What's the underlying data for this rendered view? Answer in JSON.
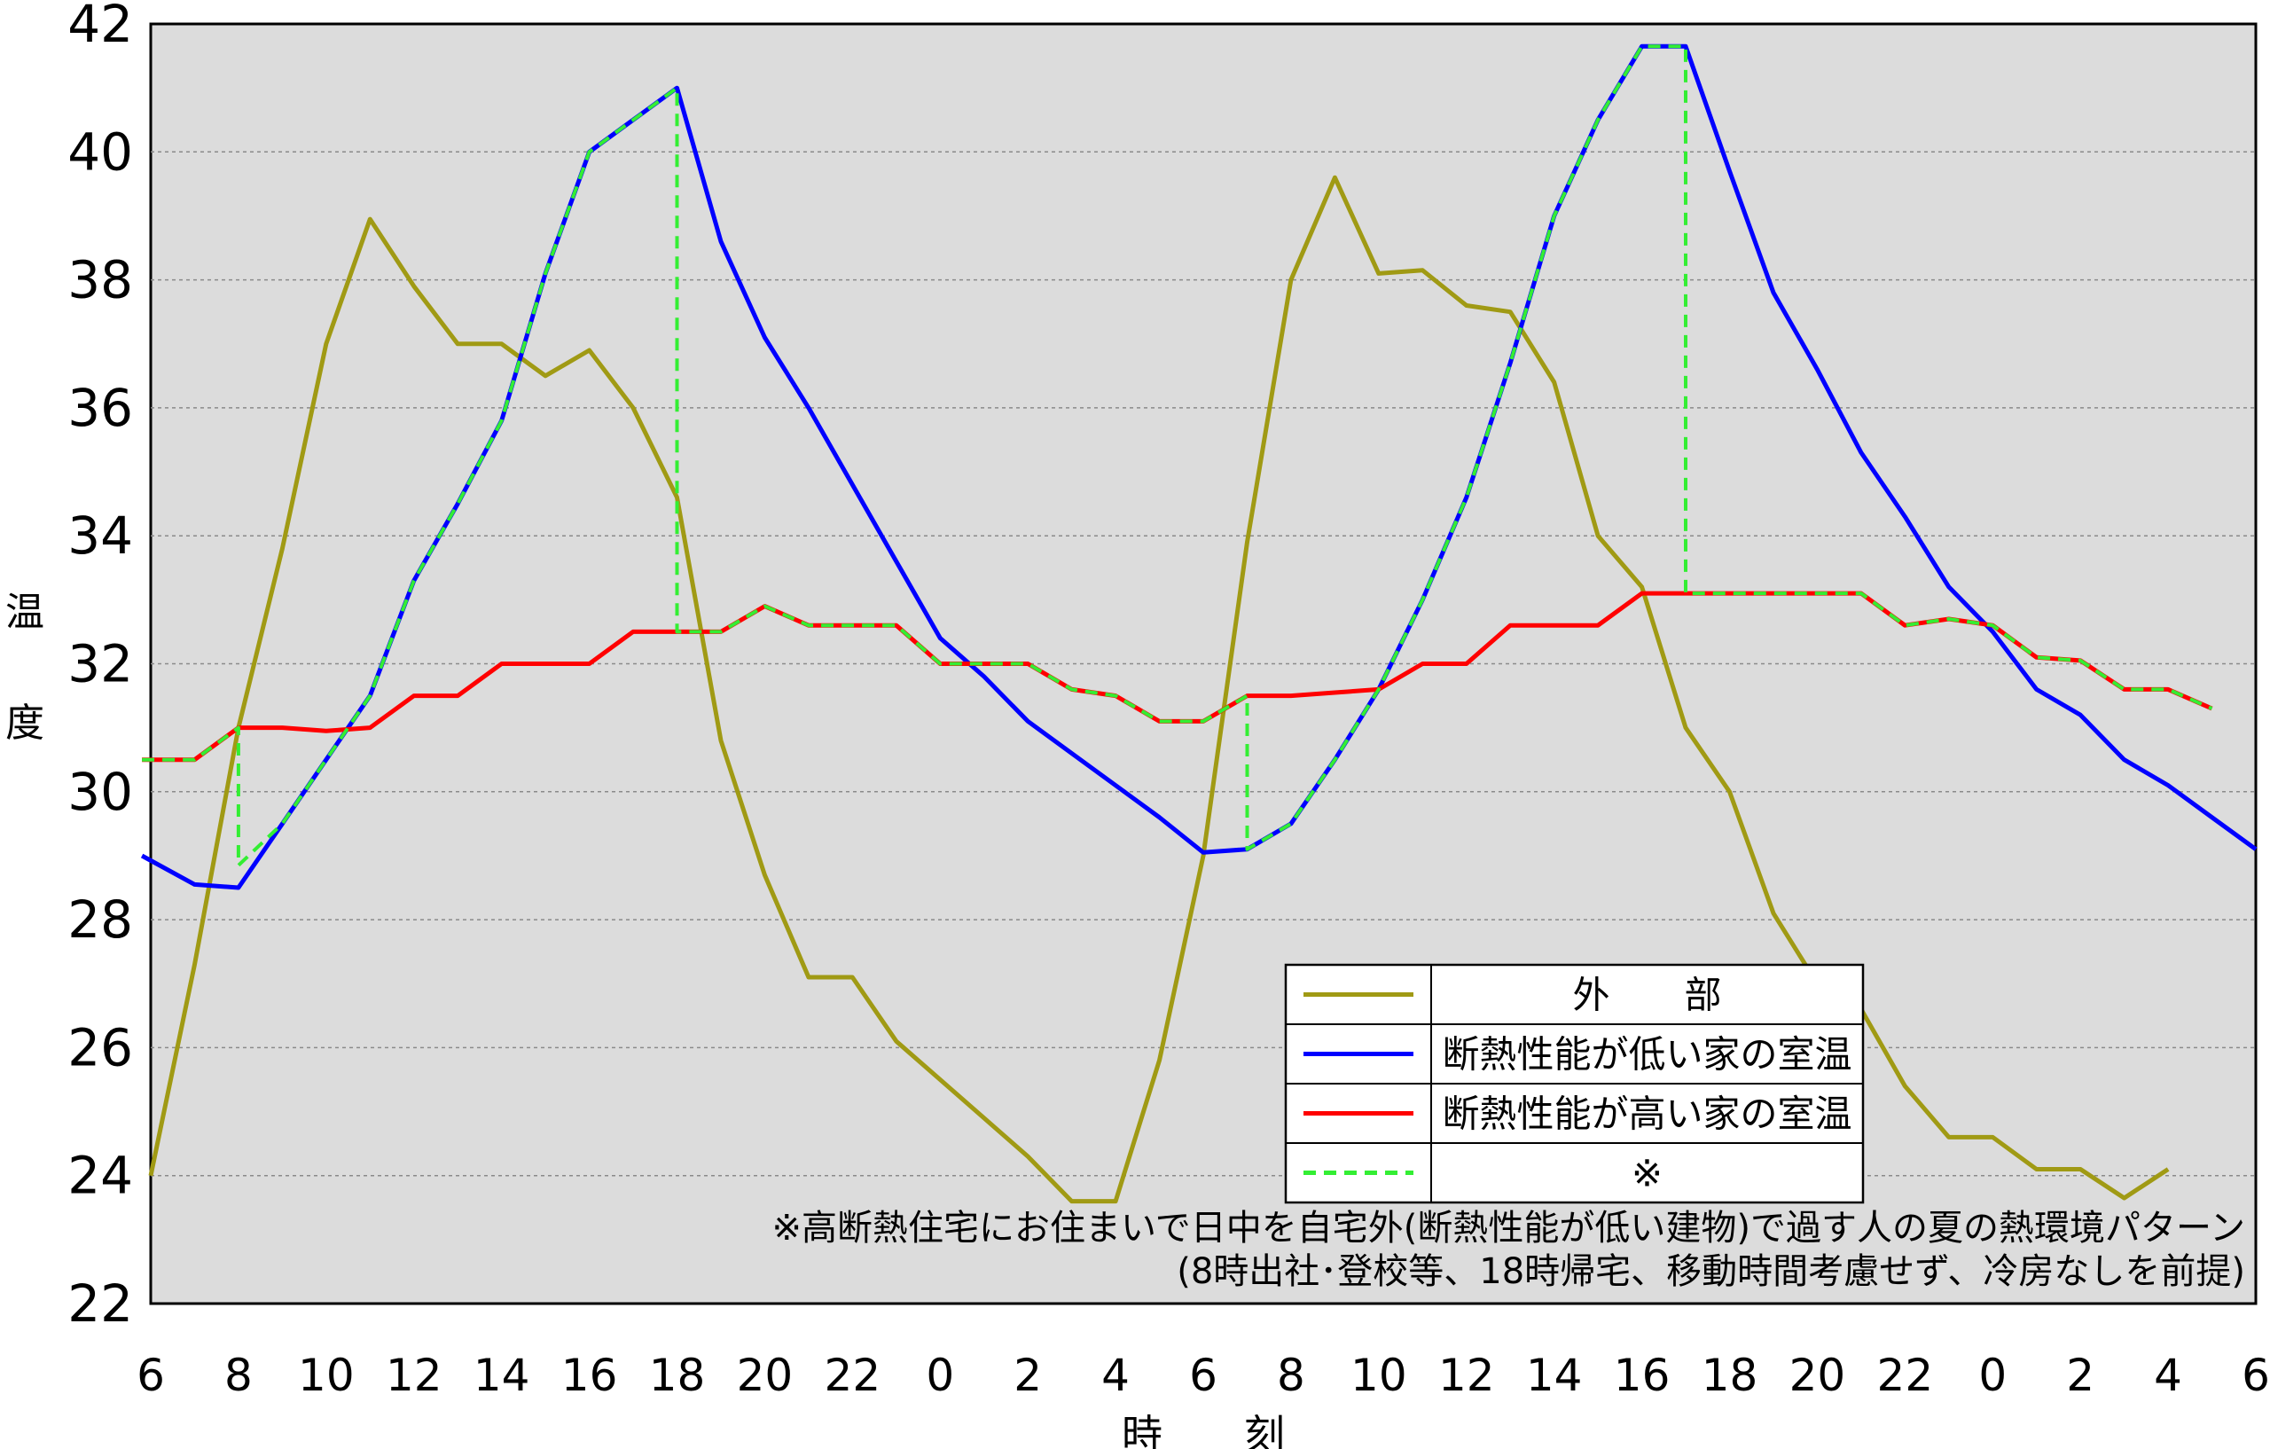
{
  "chart_data": {
    "type": "line",
    "ylabel": "温度",
    "xlabel": "時刻",
    "ylim": [
      22,
      42
    ],
    "yticks": [
      22,
      24,
      26,
      28,
      30,
      32,
      34,
      36,
      38,
      40,
      42
    ],
    "xlim": [
      0,
      48
    ],
    "xtick_labels": [
      "6",
      "8",
      "10",
      "12",
      "14",
      "16",
      "18",
      "20",
      "22",
      "0",
      "2",
      "4",
      "6",
      "8",
      "10",
      "12",
      "14",
      "16",
      "18",
      "20",
      "22",
      "0",
      "2",
      "4",
      "6"
    ],
    "grid": "horizontal dotted",
    "background": "#dcdcdc",
    "legend_position": "lower-right",
    "series": [
      {
        "name": "外　　部",
        "color": "#a09a14",
        "dash": "solid",
        "points": [
          [
            0,
            24.0
          ],
          [
            1,
            27.3
          ],
          [
            2,
            31.0
          ],
          [
            3,
            33.8
          ],
          [
            4,
            37.0
          ],
          [
            5,
            38.95
          ],
          [
            6,
            37.9
          ],
          [
            7,
            37.0
          ],
          [
            8,
            37.0
          ],
          [
            9,
            36.5
          ],
          [
            10,
            36.9
          ],
          [
            11,
            36.0
          ],
          [
            12,
            34.6
          ],
          [
            13,
            30.8
          ],
          [
            14,
            28.7
          ],
          [
            15,
            27.1
          ],
          [
            16,
            27.1
          ],
          [
            17,
            26.1
          ],
          [
            18,
            25.5
          ],
          [
            19,
            24.9
          ],
          [
            20,
            24.3
          ],
          [
            21,
            23.6
          ],
          [
            22,
            23.6
          ],
          [
            23,
            25.8
          ],
          [
            24,
            29.0
          ],
          [
            25,
            33.9
          ],
          [
            26,
            38.0
          ],
          [
            27,
            39.6
          ],
          [
            28,
            38.1
          ],
          [
            29,
            38.15
          ],
          [
            30,
            37.6
          ],
          [
            31,
            37.5
          ],
          [
            32,
            36.4
          ],
          [
            33,
            34.0
          ],
          [
            34,
            33.2
          ],
          [
            35,
            31.0
          ],
          [
            36,
            30.0
          ],
          [
            37,
            28.1
          ],
          [
            38,
            27.0
          ],
          [
            39,
            26.6
          ],
          [
            40,
            25.4
          ],
          [
            41,
            24.6
          ],
          [
            42,
            24.6
          ],
          [
            43,
            24.1
          ],
          [
            44,
            24.1
          ],
          [
            45,
            23.65
          ],
          [
            46,
            24.1
          ]
        ]
      },
      {
        "name": "断熱性能が低い家の室温",
        "color": "#0000ff",
        "dash": "solid",
        "points": [
          [
            -0.2,
            29.0
          ],
          [
            1,
            28.55
          ],
          [
            2,
            28.5
          ],
          [
            3,
            29.5
          ],
          [
            4,
            30.5
          ],
          [
            5,
            31.5
          ],
          [
            6,
            33.3
          ],
          [
            7,
            34.5
          ],
          [
            8,
            35.8
          ],
          [
            9,
            38.1
          ],
          [
            10,
            40.0
          ],
          [
            11,
            40.5
          ],
          [
            12,
            41.0
          ],
          [
            13,
            38.6
          ],
          [
            14,
            37.1
          ],
          [
            15,
            36.0
          ],
          [
            16,
            34.8
          ],
          [
            17,
            33.6
          ],
          [
            18,
            32.4
          ],
          [
            19,
            31.8
          ],
          [
            20,
            31.1
          ],
          [
            21,
            30.6
          ],
          [
            22,
            30.1
          ],
          [
            23,
            29.6
          ],
          [
            24,
            29.05
          ],
          [
            25,
            29.1
          ],
          [
            26,
            29.5
          ],
          [
            27,
            30.5
          ],
          [
            28,
            31.6
          ],
          [
            29,
            33.0
          ],
          [
            30,
            34.6
          ],
          [
            31,
            36.7
          ],
          [
            32,
            39.0
          ],
          [
            33,
            40.5
          ],
          [
            34,
            41.65
          ],
          [
            35,
            41.65
          ],
          [
            36,
            39.7
          ],
          [
            37,
            37.8
          ],
          [
            38,
            36.6
          ],
          [
            39,
            35.3
          ],
          [
            40,
            34.3
          ],
          [
            41,
            33.2
          ],
          [
            42,
            32.5
          ],
          [
            43,
            31.6
          ],
          [
            44,
            31.2
          ],
          [
            45,
            30.5
          ],
          [
            46,
            30.1
          ],
          [
            47,
            29.6
          ],
          [
            48,
            29.1
          ]
        ]
      },
      {
        "name": "断熱性能が高い家の室温",
        "color": "#ff0000",
        "dash": "solid",
        "points": [
          [
            -0.2,
            30.5
          ],
          [
            1,
            30.5
          ],
          [
            2,
            31.0
          ],
          [
            3,
            31.0
          ],
          [
            4,
            30.95
          ],
          [
            5,
            31.0
          ],
          [
            6,
            31.5
          ],
          [
            7,
            31.5
          ],
          [
            8,
            32.0
          ],
          [
            9,
            32.0
          ],
          [
            10,
            32.0
          ],
          [
            11,
            32.5
          ],
          [
            12,
            32.5
          ],
          [
            13,
            32.5
          ],
          [
            14,
            32.9
          ],
          [
            15,
            32.6
          ],
          [
            16,
            32.6
          ],
          [
            17,
            32.6
          ],
          [
            18,
            32.0
          ],
          [
            19,
            32.0
          ],
          [
            20,
            32.0
          ],
          [
            21,
            31.6
          ],
          [
            22,
            31.5
          ],
          [
            23,
            31.1
          ],
          [
            24,
            31.1
          ],
          [
            25,
            31.5
          ],
          [
            26,
            31.5
          ],
          [
            27,
            31.55
          ],
          [
            28,
            31.6
          ],
          [
            29,
            32.0
          ],
          [
            30,
            32.0
          ],
          [
            31,
            32.6
          ],
          [
            32,
            32.6
          ],
          [
            33,
            32.6
          ],
          [
            34,
            33.1
          ],
          [
            35,
            33.1
          ],
          [
            36,
            33.1
          ],
          [
            37,
            33.1
          ],
          [
            38,
            33.1
          ],
          [
            39,
            33.1
          ],
          [
            40,
            32.6
          ],
          [
            41,
            32.7
          ],
          [
            42,
            32.6
          ],
          [
            43,
            32.1
          ],
          [
            44,
            32.05
          ],
          [
            45,
            31.6
          ],
          [
            46,
            31.6
          ],
          [
            47,
            31.3
          ]
        ]
      },
      {
        "name": "※",
        "color": "#33ee33",
        "dash": "dashed",
        "points": [
          [
            -0.2,
            30.5
          ],
          [
            1,
            30.5
          ],
          [
            2,
            31.0
          ],
          [
            2,
            28.85
          ],
          [
            3,
            29.5
          ],
          [
            4,
            30.5
          ],
          [
            5,
            31.5
          ],
          [
            6,
            33.3
          ],
          [
            7,
            34.5
          ],
          [
            8,
            35.8
          ],
          [
            9,
            38.1
          ],
          [
            10,
            40.0
          ],
          [
            11,
            40.5
          ],
          [
            12,
            41.0
          ],
          [
            12,
            32.5
          ],
          [
            13,
            32.5
          ],
          [
            14,
            32.9
          ],
          [
            15,
            32.6
          ],
          [
            16,
            32.6
          ],
          [
            17,
            32.6
          ],
          [
            18,
            32.0
          ],
          [
            19,
            32.0
          ],
          [
            20,
            32.0
          ],
          [
            21,
            31.6
          ],
          [
            22,
            31.5
          ],
          [
            23,
            31.1
          ],
          [
            24,
            31.1
          ],
          [
            25,
            31.5
          ],
          [
            25,
            29.1
          ],
          [
            26,
            29.5
          ],
          [
            27,
            30.5
          ],
          [
            28,
            31.6
          ],
          [
            29,
            33.0
          ],
          [
            30,
            34.6
          ],
          [
            31,
            36.7
          ],
          [
            32,
            39.0
          ],
          [
            33,
            40.5
          ],
          [
            34,
            41.65
          ],
          [
            35,
            41.65
          ],
          [
            35,
            33.1
          ],
          [
            36,
            33.1
          ],
          [
            37,
            33.1
          ],
          [
            38,
            33.1
          ],
          [
            39,
            33.1
          ],
          [
            40,
            32.6
          ],
          [
            41,
            32.7
          ],
          [
            42,
            32.6
          ],
          [
            43,
            32.1
          ],
          [
            44,
            32.05
          ],
          [
            45,
            31.6
          ],
          [
            46,
            31.6
          ],
          [
            47,
            31.3
          ]
        ]
      }
    ],
    "legend": [
      {
        "label": "外　　部",
        "color": "#a09a14",
        "dash": "solid"
      },
      {
        "label": "断熱性能が低い家の室温",
        "color": "#0000ff",
        "dash": "solid"
      },
      {
        "label": "断熱性能が高い家の室温",
        "color": "#ff0000",
        "dash": "solid"
      },
      {
        "label": "※",
        "color": "#33ee33",
        "dash": "dashed"
      }
    ],
    "annotations": [
      "※高断熱住宅にお住まいで日中を自宅外(断熱性能が低い建物)で過す人の夏の熱環境パターン",
      "(8時出社･登校等、18時帰宅、移動時間考慮せず、冷房なしを前提)"
    ]
  }
}
